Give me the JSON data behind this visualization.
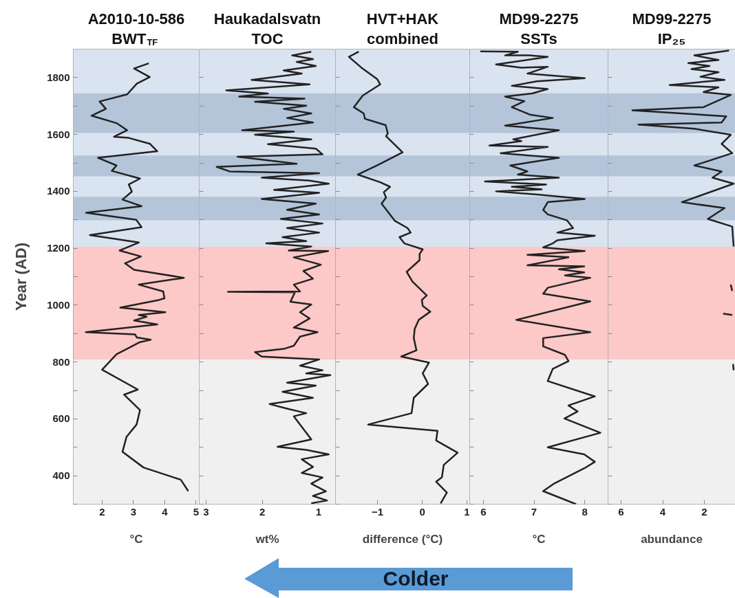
{
  "chart_data": [
    {
      "type": "line",
      "orientation": "horizontal",
      "title": "A2010-10-586 BWT$_{TF}$",
      "xlabel": "°C",
      "ylabel": "Year (AD)",
      "xlim": [
        1.08,
        5.1
      ],
      "xticks": [
        2,
        3,
        4,
        5
      ],
      "ylim": [
        300,
        1900
      ],
      "yticks": [
        {
          "value": 300,
          "label": null
        },
        400,
        {
          "value": 500,
          "label": null
        },
        600,
        {
          "value": 700,
          "label": null
        },
        800,
        {
          "value": 900,
          "label": null
        },
        1000,
        {
          "value": 1100,
          "label": null
        },
        1200,
        {
          "value": 1300,
          "label": null
        },
        1400,
        {
          "value": 1500,
          "label": null
        },
        1600,
        {
          "value": 1700,
          "label": null
        },
        1800
      ],
      "bands": [
        {
          "axis": "y",
          "from": 1205,
          "to": 1900,
          "color": "#dae3f0"
        },
        {
          "axis": "y",
          "from": 1605,
          "to": 1745,
          "color": "#b4c5da"
        },
        {
          "axis": "y",
          "from": 1453,
          "to": 1526,
          "color": "#b4c5da"
        },
        {
          "axis": "y",
          "from": 1298,
          "to": 1381,
          "color": "#b4c5da"
        },
        {
          "axis": "y",
          "from": 809,
          "to": 1205,
          "color": "#fdc8c8"
        },
        {
          "axis": "y",
          "from": 300,
          "to": 809,
          "color": "#f0f0f0"
        }
      ],
      "x": [
        1850,
        1832,
        1802,
        1779,
        1741,
        1716,
        1690,
        1666,
        1640,
        1615,
        1592,
        1588,
        1567,
        1541,
        1518,
        1491,
        1472,
        1445,
        1424,
        1399,
        1371,
        1348,
        1325,
        1300,
        1274,
        1246,
        1220,
        1192,
        1171,
        1147,
        1124,
        1096,
        1072,
        1048,
        1024,
        1018,
        991,
        975,
        965,
        959,
        946,
        932,
        905,
        897,
        886,
        878,
        870,
        827,
        773,
        703,
        685,
        631,
        580,
        537,
        484,
        429,
        386,
        346
      ],
      "series": [
        {
          "color": "#222222",
          "values": [
            3.49,
            3.02,
            3.52,
            3.11,
            2.8,
            1.92,
            2.12,
            1.66,
            2.46,
            2.8,
            2.38,
            2.85,
            3.53,
            3.76,
            1.87,
            2.46,
            2.31,
            3.21,
            2.85,
            2.95,
            2.65,
            3.26,
            1.49,
            3.09,
            3.26,
            1.61,
            3.17,
            2.56,
            3.24,
            2.73,
            3.02,
            4.61,
            3.17,
            3.95,
            3.99,
            3.81,
            2.58,
            4.02,
            3.17,
            3.42,
            3.02,
            3.76,
            1.48,
            3.05,
            3.11,
            3.55,
            3.21,
            2.46,
            2.0,
            3.14,
            2.7,
            3.21,
            3.1,
            2.78,
            2.65,
            3.32,
            4.51,
            4.75
          ]
        }
      ]
    },
    {
      "type": "line",
      "orientation": "horizontal",
      "title": "Haukadalsvatn TOC",
      "xlabel": "wt%",
      "tick_labels": "x",
      "xlim": [
        3.12,
        0.7
      ],
      "xticks": [
        3,
        2,
        1
      ],
      "ylim": [
        300,
        1900
      ],
      "yticks": [
        300,
        400,
        500,
        600,
        700,
        800,
        900,
        1000,
        1100,
        1200,
        1300,
        1400,
        1500,
        1600,
        1700,
        1800
      ],
      "bands": [
        {
          "axis": "y",
          "from": 1205,
          "to": 1900,
          "color": "#dae3f0"
        },
        {
          "axis": "y",
          "from": 1605,
          "to": 1745,
          "color": "#b4c5da"
        },
        {
          "axis": "y",
          "from": 1453,
          "to": 1526,
          "color": "#b4c5da"
        },
        {
          "axis": "y",
          "from": 1298,
          "to": 1381,
          "color": "#b4c5da"
        },
        {
          "axis": "y",
          "from": 809,
          "to": 1205,
          "color": "#fdc8c8"
        },
        {
          "axis": "y",
          "from": 300,
          "to": 809,
          "color": "#f0f0f0"
        }
      ],
      "x": [
        1891,
        1878,
        1865,
        1855,
        1841,
        1825,
        1814,
        1792,
        1776,
        1755,
        1744,
        1733,
        1726,
        1715,
        1701,
        1690,
        1674,
        1658,
        1642,
        1615,
        1610,
        1599,
        1583,
        1566,
        1550,
        1530,
        1522,
        1497,
        1486,
        1470,
        1464,
        1448,
        1438,
        1427,
        1405,
        1395,
        1373,
        1357,
        1335,
        1319,
        1303,
        1287,
        1271,
        1255,
        1239,
        1225,
        1217,
        1206,
        1192,
        1190,
        1168,
        1142,
        1120,
        1093,
        1072,
        1048,
        1047,
        1045,
        1012,
        1002,
        975,
        953,
        921,
        905,
        889,
        857,
        846,
        835,
        819,
        809,
        787,
        771,
        760,
        754,
        727,
        717,
        695,
        674,
        652,
        636,
        620,
        609,
        528,
        502,
        491,
        475,
        458,
        431,
        410,
        394,
        372,
        345,
        329,
        313,
        303
      ],
      "series": [
        {
          "color": "#222222",
          "values": [
            1.13,
            1.47,
            1.1,
            1.39,
            1.05,
            1.62,
            1.3,
            2.19,
            1.16,
            2.64,
            1.9,
            2.41,
            1.25,
            2.13,
            1.22,
            1.62,
            1.13,
            1.56,
            1.1,
            2.36,
            1.44,
            2.13,
            1.13,
            1.9,
            1.05,
            0.93,
            2.44,
            1.39,
            2.81,
            2.58,
            0.99,
            2.01,
            1.16,
            0.82,
            1.79,
            0.99,
            2.01,
            1.05,
            1.56,
            0.99,
            1.67,
            0.93,
            1.56,
            0.99,
            1.64,
            1.22,
            1.93,
            1.13,
            1.53,
            0.83,
            1.44,
            0.96,
            1.27,
            1.1,
            1.44,
            1.33,
            2.61,
            1.42,
            1.5,
            1.13,
            1.33,
            1.16,
            1.44,
            1.02,
            1.33,
            1.44,
            1.62,
            2.13,
            2.01,
            0.99,
            1.33,
            0.93,
            1.22,
            0.79,
            1.56,
            1.05,
            1.64,
            1.1,
            1.87,
            1.56,
            1.22,
            1.44,
            1.13,
            1.73,
            1.22,
            0.82,
            1.3,
            1.1,
            1.3,
            0.93,
            1.13,
            0.87,
            1.1,
            0.85,
            1.13
          ]
        }
      ]
    },
    {
      "type": "line",
      "orientation": "horizontal",
      "title": "HVT+HAK combined",
      "xlabel": "difference (°C)",
      "tick_labels": "x",
      "xlim": [
        -1.94,
        1.06
      ],
      "xticks": [
        -1,
        0,
        1
      ],
      "ylim": [
        300,
        1900
      ],
      "yticks": [
        300,
        400,
        500,
        600,
        700,
        800,
        900,
        1000,
        1100,
        1200,
        1300,
        1400,
        1500,
        1600,
        1700,
        1800
      ],
      "bands": [
        {
          "axis": "y",
          "from": 1205,
          "to": 1900,
          "color": "#dae3f0"
        },
        {
          "axis": "y",
          "from": 1605,
          "to": 1745,
          "color": "#b4c5da"
        },
        {
          "axis": "y",
          "from": 1453,
          "to": 1526,
          "color": "#b4c5da"
        },
        {
          "axis": "y",
          "from": 1298,
          "to": 1381,
          "color": "#b4c5da"
        },
        {
          "axis": "y",
          "from": 809,
          "to": 1205,
          "color": "#fdc8c8"
        },
        {
          "axis": "y",
          "from": 300,
          "to": 809,
          "color": "#f0f0f0"
        }
      ],
      "annotations": [
        "Colder"
      ],
      "x": [
        1891,
        1873,
        1835,
        1795,
        1776,
        1737,
        1696,
        1674,
        1655,
        1633,
        1604,
        1594,
        1537,
        1491,
        1459,
        1432,
        1416,
        1397,
        1378,
        1357,
        1296,
        1271,
        1255,
        1239,
        1217,
        1196,
        1180,
        1158,
        1117,
        1083,
        1034,
        1018,
        997,
        977,
        948,
        916,
        884,
        841,
        819,
        798,
        760,
        723,
        674,
        620,
        580,
        558,
        524,
        481,
        438,
        395,
        379,
        341,
        303
      ],
      "series": [
        {
          "color": "#222222",
          "values": [
            -1.42,
            -1.64,
            -1.36,
            -1.01,
            -0.94,
            -1.33,
            -1.53,
            -1.31,
            -1.28,
            -0.82,
            -0.77,
            -0.81,
            -0.44,
            -1.01,
            -1.44,
            -0.94,
            -0.72,
            -0.86,
            -0.81,
            -0.91,
            -0.61,
            -0.33,
            -0.26,
            -0.51,
            -0.4,
            0.01,
            -0.06,
            -0.06,
            -0.35,
            -0.22,
            0.1,
            -0.01,
            0.01,
            0.18,
            -0.08,
            -0.17,
            -0.19,
            -0.13,
            -0.47,
            0.15,
            0.01,
            0.13,
            -0.19,
            -0.24,
            -1.21,
            0.34,
            0.31,
            0.79,
            0.48,
            0.44,
            0.31,
            0.55,
            0.41
          ]
        }
      ]
    },
    {
      "type": "line",
      "orientation": "horizontal",
      "title": "MD99-2275 SSTs",
      "xlabel": "°C",
      "tick_labels": "x",
      "xlim": [
        5.73,
        8.46
      ],
      "xticks": [
        6,
        7,
        8
      ],
      "ylim": [
        300,
        1900
      ],
      "yticks": [
        300,
        400,
        500,
        600,
        700,
        800,
        900,
        1000,
        1100,
        1200,
        1300,
        1400,
        1500,
        1600,
        1700,
        1800
      ],
      "bands": [
        {
          "axis": "y",
          "from": 1205,
          "to": 1900,
          "color": "#dae3f0"
        },
        {
          "axis": "y",
          "from": 1605,
          "to": 1745,
          "color": "#b4c5da"
        },
        {
          "axis": "y",
          "from": 1453,
          "to": 1526,
          "color": "#b4c5da"
        },
        {
          "axis": "y",
          "from": 1298,
          "to": 1381,
          "color": "#b4c5da"
        },
        {
          "axis": "y",
          "from": 809,
          "to": 1205,
          "color": "#fdc8c8"
        },
        {
          "axis": "y",
          "from": 300,
          "to": 809,
          "color": "#f0f0f0"
        }
      ],
      "x": [
        1892,
        1891,
        1878,
        1878,
        1873,
        1846,
        1835,
        1838,
        1814,
        1798,
        1787,
        1771,
        1760,
        1744,
        1733,
        1717,
        1696,
        1669,
        1658,
        1631,
        1615,
        1583,
        1577,
        1561,
        1556,
        1534,
        1518,
        1491,
        1470,
        1459,
        1448,
        1435,
        1424,
        1416,
        1407,
        1400,
        1389,
        1373,
        1362,
        1335,
        1319,
        1298,
        1271,
        1255,
        1244,
        1228,
        1217,
        1203,
        1190,
        1177,
        1168,
        1140,
        1136,
        1126,
        1115,
        1104,
        1096,
        1061,
        1040,
        1013,
        948,
        905,
        884,
        855,
        825,
        803,
        776,
        733,
        679,
        647,
        626,
        601,
        551,
        500,
        475,
        449,
        427,
        373,
        346,
        300
      ],
      "series": [
        {
          "color": "#222222",
          "values": [
            5.94,
            6.68,
            6.43,
            6.9,
            7.27,
            6.25,
            6.75,
            7.27,
            6.87,
            8.0,
            7.06,
            6.56,
            7.27,
            6.96,
            6.43,
            6.81,
            6.56,
            6.93,
            7.37,
            6.43,
            7.49,
            6.59,
            6.75,
            6.12,
            7.27,
            6.34,
            7.49,
            6.53,
            6.87,
            6.68,
            7.49,
            6.03,
            7.24,
            6.56,
            7.15,
            6.25,
            7.06,
            8.0,
            7.27,
            7.18,
            7.27,
            7.65,
            7.77,
            7.46,
            8.2,
            7.46,
            7.37,
            7.18,
            8.0,
            6.87,
            7.68,
            6.87,
            7.99,
            7.49,
            7.99,
            7.61,
            8.11,
            7.27,
            7.18,
            8.11,
            6.65,
            8.11,
            7.18,
            7.18,
            7.61,
            7.68,
            7.37,
            7.27,
            8.2,
            7.68,
            7.86,
            7.6,
            8.31,
            7.27,
            7.99,
            8.2,
            8.0,
            7.4,
            7.18,
            7.83
          ]
        }
      ]
    },
    {
      "type": "line",
      "orientation": "horizontal",
      "title": "MD99-2275 IP₂₅",
      "xlabel": "abundance",
      "tick_labels": "x",
      "xlim": [
        6.63,
        0.51
      ],
      "xticks": [
        6,
        4,
        2
      ],
      "ylim": [
        300,
        1900
      ],
      "yticks": [
        300,
        400,
        500,
        600,
        700,
        800,
        900,
        1000,
        1100,
        1200,
        1300,
        1400,
        1500,
        1600,
        1700,
        1800
      ],
      "bands": [
        {
          "axis": "y",
          "from": 1205,
          "to": 1900,
          "color": "#dae3f0"
        },
        {
          "axis": "y",
          "from": 1605,
          "to": 1745,
          "color": "#b4c5da"
        },
        {
          "axis": "y",
          "from": 1453,
          "to": 1526,
          "color": "#b4c5da"
        },
        {
          "axis": "y",
          "from": 1298,
          "to": 1381,
          "color": "#b4c5da"
        },
        {
          "axis": "y",
          "from": 809,
          "to": 1205,
          "color": "#fdc8c8"
        },
        {
          "axis": "y",
          "from": 300,
          "to": 809,
          "color": "#f0f0f0"
        }
      ],
      "x": [
        1895,
        1878,
        1862,
        1851,
        1841,
        1830,
        1819,
        1803,
        1792,
        1774,
        1766,
        1749,
        1739,
        1696,
        1685,
        1664,
        1642,
        1635,
        1620,
        1599,
        1567,
        1534,
        1491,
        1470,
        1448,
        1427,
        1362,
        1341,
        1303,
        1276,
        1233,
        1206,
        1140,
        1072,
        1050,
        1010,
        970,
        965,
        880,
        793,
        771
      ],
      "series": [
        {
          "color": "#222222",
          "values": [
            0.81,
            2.48,
            1.32,
            2.77,
            1.75,
            2.62,
            1.32,
            2.19,
            1.03,
            3.67,
            1.32,
            2.04,
            0.73,
            2.04,
            5.46,
            0.95,
            1.17,
            5.17,
            2.48,
            0.73,
            1.17,
            0.66,
            2.48,
            1.17,
            1.61,
            0.59,
            3.08,
            1.03,
            1.83,
            0.66,
            0.62,
            0.59,
            null,
            0.73,
            0.66,
            null,
            1.1,
            0.66,
            null,
            0.62,
            0.59
          ]
        }
      ]
    }
  ]
}
